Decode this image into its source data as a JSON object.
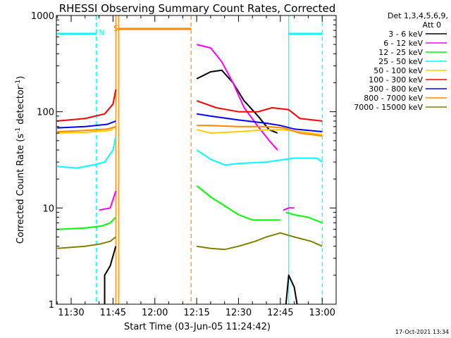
{
  "chart_data": {
    "type": "line",
    "title": "RHESSI Observing Summary Count Rates, Corrected",
    "xlabel": "Start Time (03-Jun-05 11:24:42)",
    "ylabel": "Corrected Count Rate (s",
    "ylabel_sup1": "-1",
    "ylabel_mid": " detector",
    "ylabel_sup2": "-1",
    "ylabel_end": ")",
    "y_scale": "log",
    "ylim": [
      1,
      1000
    ],
    "xlim": [
      "11:24:42",
      "13:05:00"
    ],
    "x_ticks": [
      "11:30",
      "11:45",
      "12:00",
      "12:15",
      "12:30",
      "12:45",
      "13:00"
    ],
    "y_ticks": [
      "1",
      "10",
      "100",
      "1000"
    ],
    "grid": false,
    "legend_header": [
      "Det 1,3,4,5,6,9,",
      "Att 0"
    ],
    "series": [
      {
        "name": "3 - 6 keV",
        "color": "#000000",
        "segments": [
          [
            [
              "11:42",
              1.0
            ],
            [
              "11:42",
              2.0
            ],
            [
              "11:44",
              2.5
            ],
            [
              "11:46",
              4.0
            ]
          ],
          [
            [
              "12:15",
              220
            ],
            [
              "12:20",
              260
            ],
            [
              "12:24",
              270
            ],
            [
              "12:28",
              200
            ],
            [
              "12:32",
              130
            ],
            [
              "12:37",
              90
            ],
            [
              "12:41",
              65
            ],
            [
              "12:44",
              60
            ]
          ],
          [
            [
              "12:47",
              1.0
            ],
            [
              "12:48",
              2.0
            ],
            [
              "12:50",
              1.5
            ],
            [
              "12:51",
              1.0
            ]
          ]
        ]
      },
      {
        "name": "6 - 12 keV",
        "color": "#ff00ff",
        "segments": [
          [
            [
              "11:40",
              9.5
            ],
            [
              "11:44",
              10
            ],
            [
              "11:46",
              15
            ]
          ],
          [
            [
              "12:15",
              500
            ],
            [
              "12:20",
              460
            ],
            [
              "12:24",
              330
            ],
            [
              "12:28",
              200
            ],
            [
              "12:32",
              110
            ],
            [
              "12:37",
              70
            ],
            [
              "12:41",
              50
            ],
            [
              "12:44",
              40
            ]
          ],
          [
            [
              "12:46",
              9.5
            ],
            [
              "12:48",
              10
            ],
            [
              "12:50",
              10
            ]
          ]
        ]
      },
      {
        "name": "12 - 25 keV",
        "color": "#00ff00",
        "segments": [
          [
            [
              "11:25",
              6.0
            ],
            [
              "11:35",
              6.2
            ],
            [
              "11:41",
              6.5
            ],
            [
              "11:44",
              7.0
            ],
            [
              "11:46",
              8.0
            ]
          ],
          [
            [
              "12:15",
              17
            ],
            [
              "12:20",
              13
            ],
            [
              "12:25",
              10.5
            ],
            [
              "12:30",
              8.5
            ],
            [
              "12:35",
              7.5
            ],
            [
              "12:40",
              7.5
            ],
            [
              "12:45",
              7.5
            ]
          ],
          [
            [
              "12:47",
              9.0
            ],
            [
              "12:50",
              8.5
            ],
            [
              "12:55",
              8.0
            ],
            [
              "13:00",
              7.0
            ]
          ]
        ]
      },
      {
        "name": "25 - 50 keV",
        "color": "#00ffff",
        "segments": [
          [
            [
              "11:25",
              27
            ],
            [
              "11:32",
              26
            ],
            [
              "11:38",
              28
            ],
            [
              "11:42",
              30
            ],
            [
              "11:45",
              40
            ],
            [
              "11:46",
              55
            ]
          ],
          [
            [
              "12:15",
              40
            ],
            [
              "12:20",
              32
            ],
            [
              "12:25",
              28
            ],
            [
              "12:30",
              29
            ],
            [
              "12:40",
              30
            ],
            [
              "12:50",
              33
            ],
            [
              "12:58",
              33
            ],
            [
              "13:00",
              30
            ]
          ]
        ]
      },
      {
        "name": "50 - 100 keV",
        "color": "#ffcc00",
        "segments": [
          [
            [
              "11:25",
              60
            ],
            [
              "11:35",
              61
            ],
            [
              "11:44",
              64
            ],
            [
              "11:46",
              70
            ]
          ],
          [
            [
              "12:15",
              65
            ],
            [
              "12:20",
              60
            ],
            [
              "12:30",
              62
            ],
            [
              "12:40",
              65
            ],
            [
              "12:46",
              65
            ],
            [
              "12:52",
              62
            ],
            [
              "13:00",
              58
            ]
          ]
        ]
      },
      {
        "name": "100 - 300 keV",
        "color": "#ff0000",
        "segments": [
          [
            [
              "11:25",
              80
            ],
            [
              "11:35",
              85
            ],
            [
              "11:42",
              95
            ],
            [
              "11:45",
              120
            ],
            [
              "11:46",
              170
            ]
          ],
          [
            [
              "12:15",
              130
            ],
            [
              "12:22",
              110
            ],
            [
              "12:30",
              100
            ],
            [
              "12:37",
              100
            ],
            [
              "12:42",
              110
            ],
            [
              "12:48",
              105
            ],
            [
              "12:52",
              85
            ],
            [
              "13:00",
              80
            ]
          ]
        ]
      },
      {
        "name": "300 - 800 keV",
        "color": "#0000ff",
        "segments": [
          [
            [
              "11:25",
              68
            ],
            [
              "11:35",
              70
            ],
            [
              "11:43",
              74
            ],
            [
              "11:46",
              80
            ]
          ],
          [
            [
              "12:15",
              95
            ],
            [
              "12:20",
              90
            ],
            [
              "12:30",
              82
            ],
            [
              "12:40",
              76
            ],
            [
              "12:45",
              72
            ],
            [
              "12:50",
              66
            ],
            [
              "13:00",
              62
            ]
          ]
        ]
      },
      {
        "name": "800 - 7000 keV",
        "color": "#ff8800",
        "segments": [
          [
            [
              "11:25",
              62
            ],
            [
              "11:35",
              64
            ],
            [
              "11:43",
              66
            ],
            [
              "11:46",
              70
            ]
          ],
          [
            [
              "12:15",
              72
            ],
            [
              "12:20",
              72
            ],
            [
              "12:30",
              70
            ],
            [
              "12:40",
              70
            ],
            [
              "12:46",
              68
            ],
            [
              "12:52",
              60
            ],
            [
              "13:00",
              56
            ]
          ]
        ]
      },
      {
        "name": "7000 - 15000 keV",
        "color": "#808000",
        "segments": [
          [
            [
              "11:25",
              3.8
            ],
            [
              "11:30",
              3.9
            ],
            [
              "11:35",
              4.0
            ],
            [
              "11:40",
              4.2
            ],
            [
              "11:44",
              4.5
            ],
            [
              "11:46",
              5.0
            ]
          ],
          [
            [
              "12:15",
              4.0
            ],
            [
              "12:20",
              3.8
            ],
            [
              "12:25",
              3.7
            ],
            [
              "12:30",
              4.0
            ],
            [
              "12:36",
              4.5
            ],
            [
              "12:40",
              5.0
            ],
            [
              "12:45",
              5.5
            ],
            [
              "12:50",
              5.0
            ],
            [
              "12:56",
              4.5
            ],
            [
              "13:00",
              4.0
            ]
          ]
        ]
      }
    ],
    "annotations": [
      {
        "type": "vline",
        "time": "11:39",
        "style": "dashed",
        "color": "#00ffff"
      },
      {
        "type": "vline",
        "time": "11:46",
        "style": "solid",
        "color": "#ff8800"
      },
      {
        "type": "vline",
        "time": "11:47",
        "style": "solid",
        "color": "#ff8800"
      },
      {
        "type": "vline",
        "time": "12:13",
        "style": "dashed",
        "color": "#ff8800"
      },
      {
        "type": "vline",
        "time": "12:48",
        "style": "solid",
        "color": "#00ffff"
      },
      {
        "type": "vline",
        "time": "13:00",
        "style": "dashed",
        "color": "#00ffff"
      },
      {
        "type": "hbar",
        "start": "11:25",
        "end": "11:39",
        "color": "#00ffff"
      },
      {
        "type": "hbar",
        "start": "12:48",
        "end": "13:00",
        "color": "#00ffff"
      },
      {
        "type": "hbar",
        "start": "11:47",
        "end": "12:13",
        "color": "#ff8800"
      },
      {
        "type": "label",
        "time": "11:41",
        "text": "N",
        "color": "#00ffff"
      },
      {
        "type": "label",
        "time": "11:46",
        "text": "S",
        "color": "#ff8800"
      }
    ]
  },
  "footer": {
    "timestamp": "17-Oct-2021 13:34"
  }
}
